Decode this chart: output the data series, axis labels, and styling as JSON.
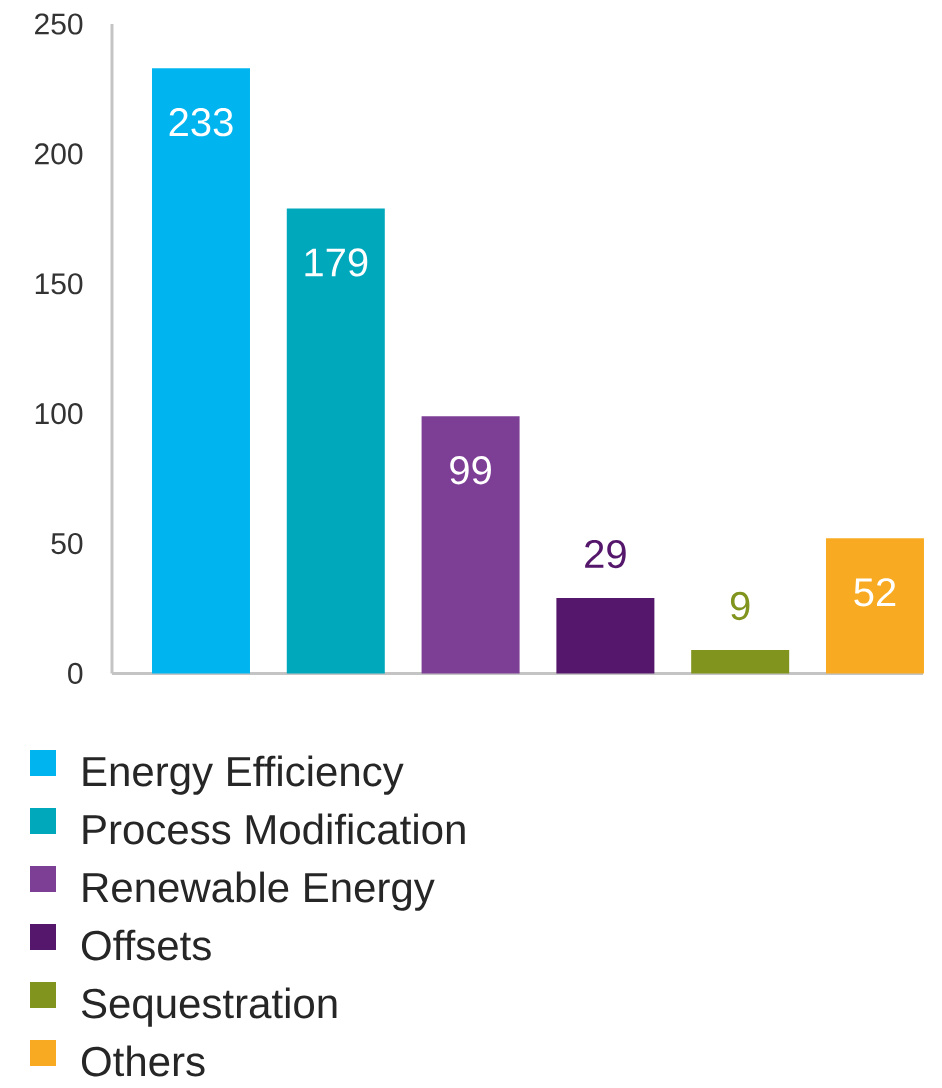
{
  "chart_data": {
    "type": "bar",
    "categories": [
      null
    ],
    "series": [
      {
        "name": "Energy Efficiency",
        "color": "#00b5ef",
        "values": [
          233
        ]
      },
      {
        "name": "Process Modification",
        "color": "#00a8bc",
        "values": [
          179
        ]
      },
      {
        "name": "Renewable Energy",
        "color": "#7d3e96",
        "values": [
          99
        ]
      },
      {
        "name": "Offsets",
        "color": "#55176b",
        "values": [
          29
        ]
      },
      {
        "name": "Sequestration",
        "color": "#80941e",
        "values": [
          9
        ]
      },
      {
        "name": "Others",
        "color": "#f8ab22",
        "values": [
          52
        ]
      }
    ],
    "ylim": [
      0,
      250
    ],
    "yticks": [
      0,
      50,
      100,
      150,
      200,
      250
    ],
    "data_labels": true,
    "legend": "bottom",
    "tick_labels": "y"
  }
}
